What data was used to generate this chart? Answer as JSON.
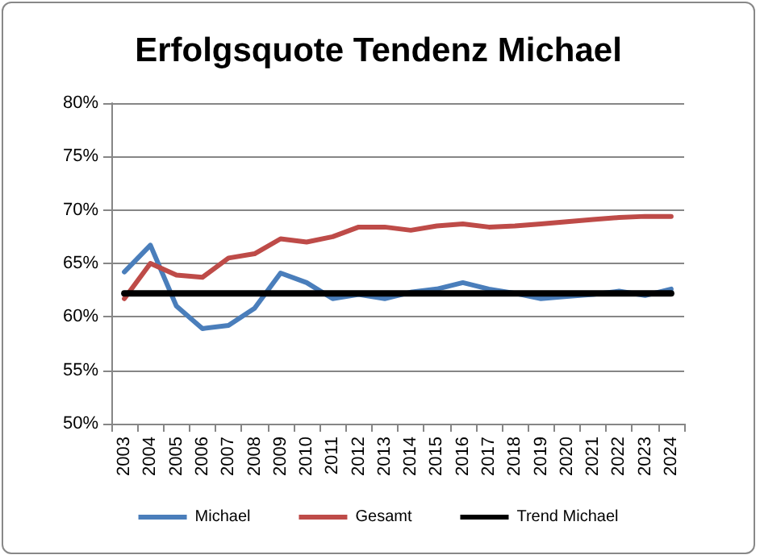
{
  "chart_data": {
    "type": "line",
    "title": "Erfolgsquote Tendenz Michael",
    "categories": [
      "2003",
      "2004",
      "2005",
      "2006",
      "2007",
      "2008",
      "2009",
      "2010",
      "2011",
      "2012",
      "2013",
      "2014",
      "2015",
      "2016",
      "2017",
      "2018",
      "2019",
      "2020",
      "2021",
      "2022",
      "2023",
      "2024"
    ],
    "series": [
      {
        "name": "Michael",
        "color": "#4a7ebb",
        "values": [
          64.2,
          66.7,
          61.0,
          58.9,
          59.2,
          60.8,
          64.1,
          63.2,
          61.7,
          62.1,
          61.7,
          62.3,
          62.6,
          63.2,
          62.6,
          62.2,
          61.7,
          61.9,
          62.1,
          62.4,
          62.0,
          62.6
        ]
      },
      {
        "name": "Gesamt",
        "color": "#be4b48",
        "values": [
          61.7,
          65.0,
          63.9,
          63.7,
          65.5,
          65.9,
          67.3,
          67.0,
          67.5,
          68.4,
          68.4,
          68.1,
          68.5,
          68.7,
          68.4,
          68.5,
          68.7,
          68.9,
          69.1,
          69.3,
          69.4,
          69.4
        ]
      },
      {
        "name": "Trend Michael",
        "color": "#000000",
        "values": [
          62.2,
          62.2,
          62.2,
          62.2,
          62.2,
          62.2,
          62.2,
          62.2,
          62.2,
          62.2,
          62.2,
          62.2,
          62.2,
          62.2,
          62.2,
          62.2,
          62.2,
          62.2,
          62.2,
          62.2,
          62.2,
          62.2
        ]
      }
    ],
    "ylim": [
      50,
      80
    ],
    "yticks": [
      {
        "value": 50,
        "label": "50%"
      },
      {
        "value": 55,
        "label": "55%"
      },
      {
        "value": 60,
        "label": "60%"
      },
      {
        "value": 65,
        "label": "65%"
      },
      {
        "value": 70,
        "label": "70%"
      },
      {
        "value": 75,
        "label": "75%"
      },
      {
        "value": 80,
        "label": "80%"
      }
    ],
    "grid": "y",
    "legend": "bottom",
    "marker": "none",
    "line_style": "solid"
  }
}
